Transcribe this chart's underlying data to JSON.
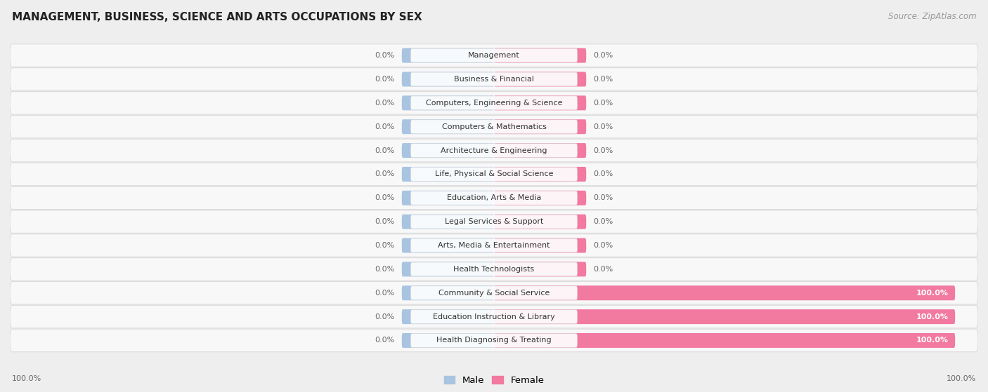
{
  "title": "MANAGEMENT, BUSINESS, SCIENCE AND ARTS OCCUPATIONS BY SEX",
  "source": "Source: ZipAtlas.com",
  "categories": [
    "Management",
    "Business & Financial",
    "Computers, Engineering & Science",
    "Computers & Mathematics",
    "Architecture & Engineering",
    "Life, Physical & Social Science",
    "Education, Arts & Media",
    "Legal Services & Support",
    "Arts, Media & Entertainment",
    "Health Technologists",
    "Community & Social Service",
    "Education Instruction & Library",
    "Health Diagnosing & Treating"
  ],
  "male_values": [
    0.0,
    0.0,
    0.0,
    0.0,
    0.0,
    0.0,
    0.0,
    0.0,
    0.0,
    0.0,
    0.0,
    0.0,
    0.0
  ],
  "female_values": [
    0.0,
    0.0,
    0.0,
    0.0,
    0.0,
    0.0,
    0.0,
    0.0,
    0.0,
    0.0,
    100.0,
    100.0,
    100.0
  ],
  "male_color": "#a8c4e0",
  "female_color": "#f279a0",
  "bg_color": "#eeeeee",
  "row_bg_color": "#f8f8f8",
  "row_border_color": "#dddddd",
  "bar_height": 0.62,
  "label_box_color": "#ffffff",
  "label_box_border": "#dddddd",
  "value_color": "#666666",
  "value_100_color": "#ffffff",
  "legend_male": "Male",
  "legend_female": "Female",
  "title_fontsize": 11,
  "source_fontsize": 8.5,
  "label_fontsize": 8,
  "value_fontsize": 8
}
